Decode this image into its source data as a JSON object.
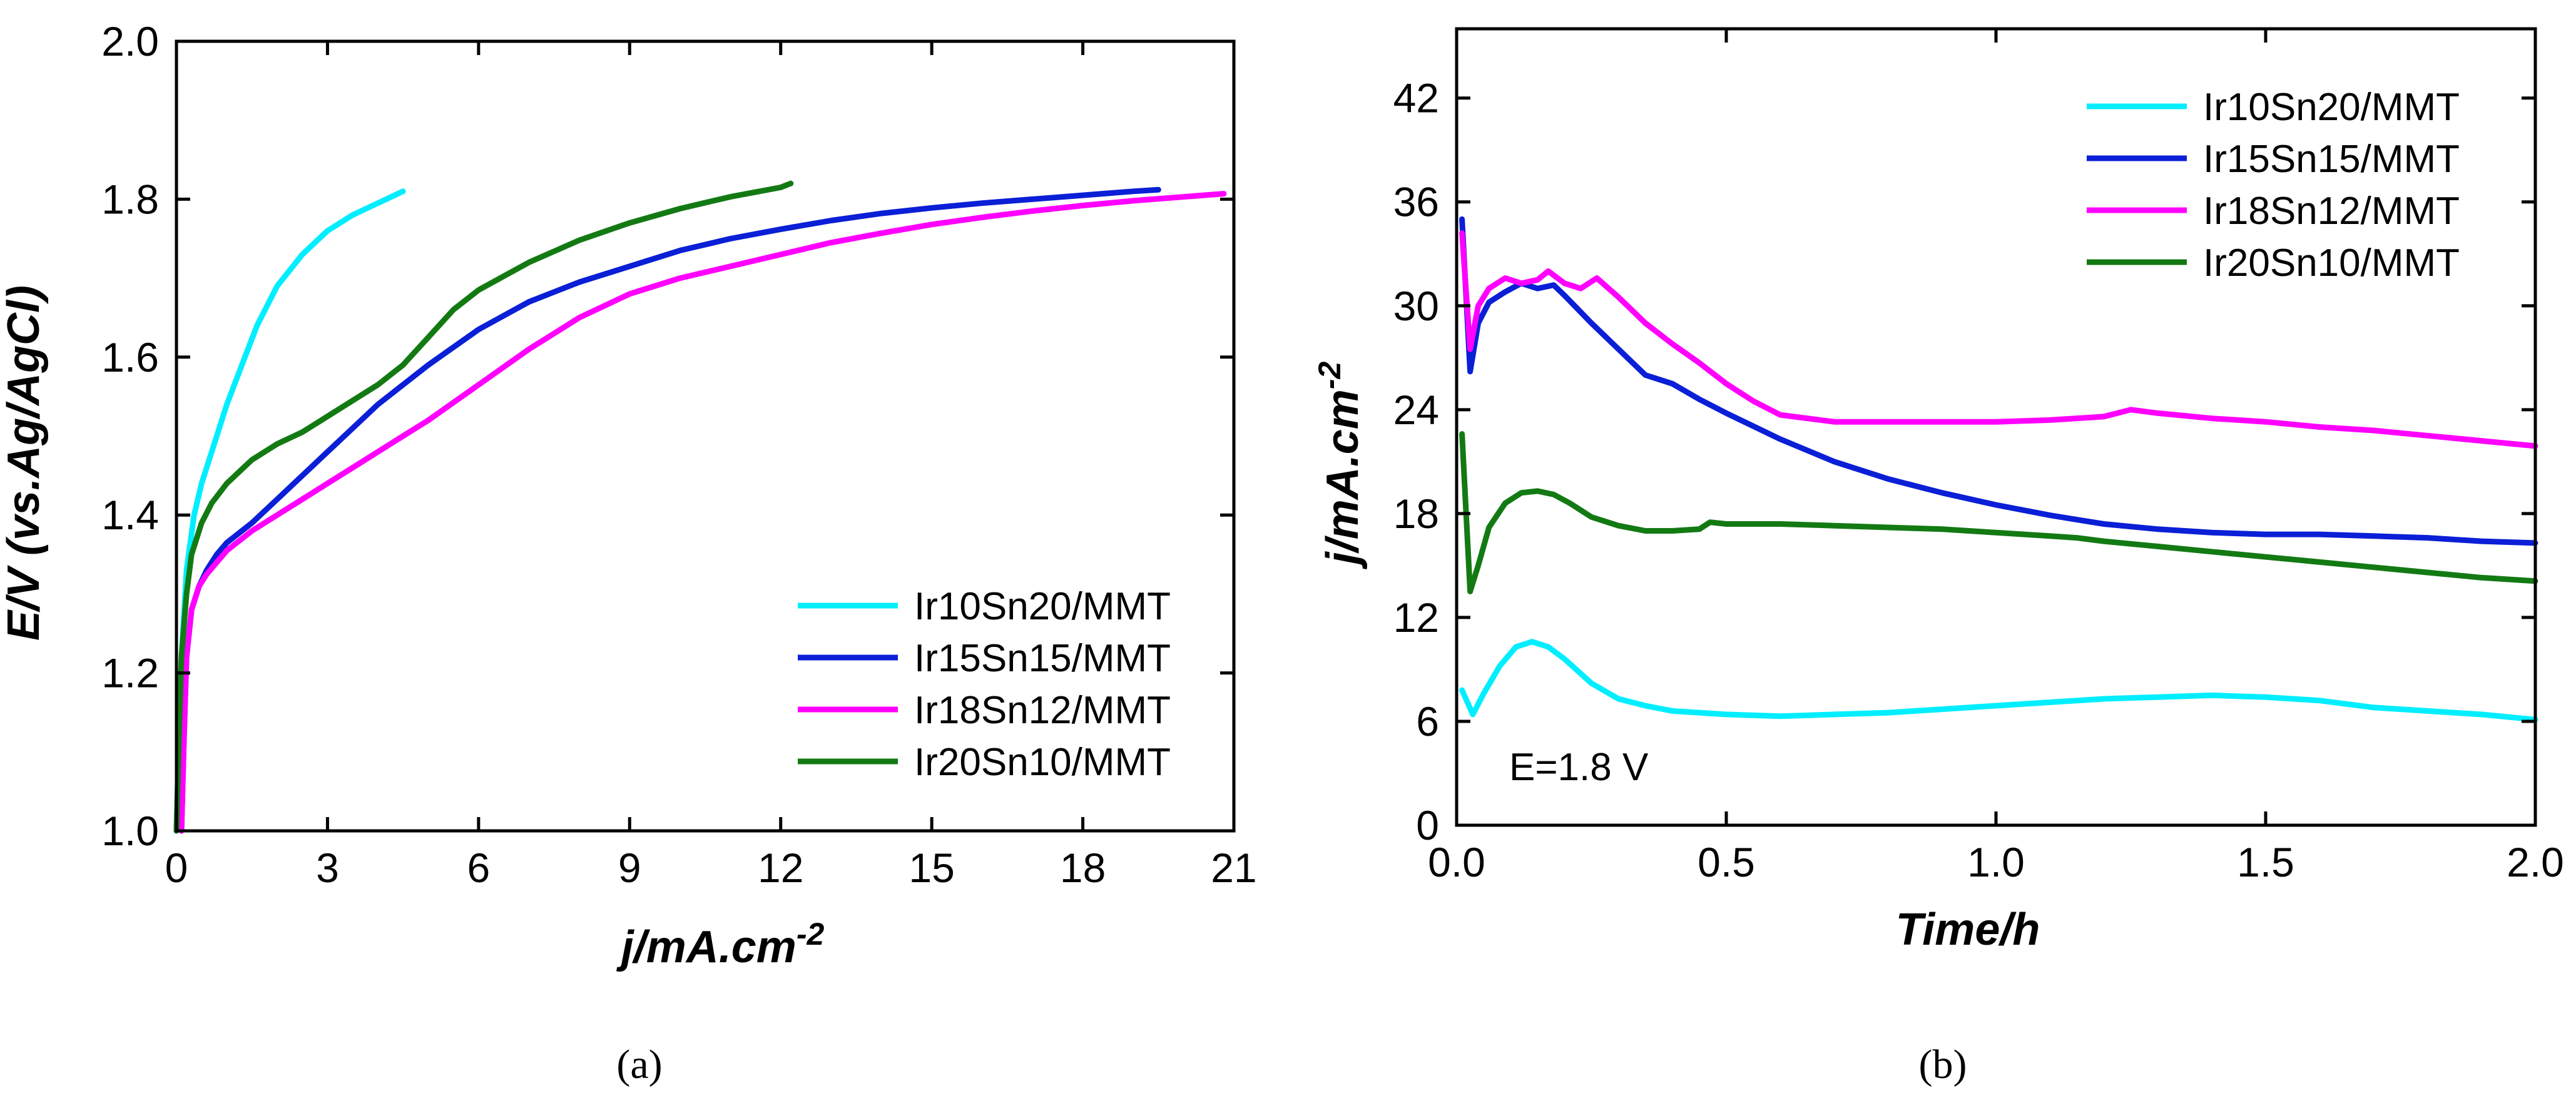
{
  "chart_data": [
    {
      "type": "line",
      "panel": "(a)",
      "xlabel": "j/mA.cm",
      "xlabel_sup": "-2",
      "ylabel": "E/V (vs.Ag/AgCl)",
      "xlim": [
        0,
        21
      ],
      "ylim": [
        1.0,
        2.0
      ],
      "xticks": [
        "0",
        "3",
        "6",
        "9",
        "12",
        "15",
        "18",
        "21"
      ],
      "yticks": [
        "1.0",
        "1.2",
        "1.4",
        "1.6",
        "1.8",
        "2.0"
      ],
      "legend_position": "lower-right",
      "series": [
        {
          "name": "Ir10Sn20/MMT",
          "color": "#00eeff",
          "x": [
            0.0,
            0.05,
            0.1,
            0.2,
            0.35,
            0.5,
            0.7,
            1.0,
            1.3,
            1.6,
            2.0,
            2.5,
            3.0,
            3.5,
            4.0,
            4.5
          ],
          "y": [
            1.0,
            1.12,
            1.22,
            1.33,
            1.4,
            1.44,
            1.48,
            1.54,
            1.59,
            1.64,
            1.69,
            1.73,
            1.76,
            1.78,
            1.795,
            1.81
          ]
        },
        {
          "name": "Ir15Sn15/MMT",
          "color": "#0a1fd6",
          "x": [
            0.1,
            0.15,
            0.2,
            0.3,
            0.45,
            0.6,
            0.8,
            1.0,
            1.5,
            2.0,
            2.5,
            3.0,
            3.5,
            4.0,
            4.5,
            5.0,
            6.0,
            7.0,
            8.0,
            9.0,
            10.0,
            11.0,
            12.0,
            13.0,
            14.0,
            15.0,
            16.0,
            17.0,
            18.0,
            19.0,
            19.5
          ],
          "y": [
            1.0,
            1.12,
            1.22,
            1.28,
            1.31,
            1.33,
            1.35,
            1.365,
            1.39,
            1.42,
            1.45,
            1.48,
            1.51,
            1.54,
            1.565,
            1.59,
            1.635,
            1.67,
            1.695,
            1.715,
            1.735,
            1.75,
            1.762,
            1.773,
            1.782,
            1.789,
            1.795,
            1.8,
            1.805,
            1.81,
            1.812
          ]
        },
        {
          "name": "Ir18Sn12/MMT",
          "color": "#ff00ff",
          "x": [
            0.1,
            0.15,
            0.2,
            0.3,
            0.45,
            0.6,
            0.8,
            1.0,
            1.5,
            2.0,
            2.5,
            3.0,
            3.5,
            4.0,
            4.5,
            5.0,
            6.0,
            7.0,
            8.0,
            9.0,
            10.0,
            11.0,
            12.0,
            13.0,
            14.0,
            15.0,
            16.0,
            17.0,
            18.0,
            19.0,
            20.0,
            20.8
          ],
          "y": [
            1.0,
            1.12,
            1.22,
            1.28,
            1.31,
            1.325,
            1.34,
            1.355,
            1.38,
            1.4,
            1.42,
            1.44,
            1.46,
            1.48,
            1.5,
            1.52,
            1.565,
            1.61,
            1.65,
            1.68,
            1.7,
            1.715,
            1.73,
            1.745,
            1.757,
            1.768,
            1.777,
            1.785,
            1.792,
            1.798,
            1.803,
            1.807
          ]
        },
        {
          "name": "Ir20Sn10/MMT",
          "color": "#137a13",
          "x": [
            0.0,
            0.05,
            0.1,
            0.2,
            0.3,
            0.5,
            0.7,
            1.0,
            1.5,
            2.0,
            2.5,
            3.0,
            3.5,
            4.0,
            4.5,
            5.0,
            5.5,
            6.0,
            7.0,
            8.0,
            9.0,
            10.0,
            11.0,
            12.0,
            12.2
          ],
          "y": [
            1.0,
            1.12,
            1.22,
            1.3,
            1.35,
            1.39,
            1.415,
            1.44,
            1.47,
            1.49,
            1.505,
            1.525,
            1.545,
            1.565,
            1.59,
            1.625,
            1.66,
            1.685,
            1.72,
            1.748,
            1.77,
            1.788,
            1.803,
            1.815,
            1.82
          ]
        }
      ],
      "caption": "(a)"
    },
    {
      "type": "line",
      "panel": "(b)",
      "xlabel": "Time/h",
      "ylabel": "j/mA.cm",
      "ylabel_sup": "-2",
      "xlim": [
        0.0,
        2.0
      ],
      "ylim": [
        0,
        46
      ],
      "xticks": [
        "0.0",
        "0.5",
        "1.0",
        "1.5",
        "2.0"
      ],
      "yticks": [
        "0",
        "6",
        "12",
        "18",
        "24",
        "30",
        "36",
        "42"
      ],
      "annotation": "E=1.8 V",
      "legend_position": "top-right",
      "series": [
        {
          "name": "Ir10Sn20/MMT",
          "color": "#00eeff",
          "x": [
            0.01,
            0.03,
            0.05,
            0.08,
            0.11,
            0.14,
            0.17,
            0.2,
            0.25,
            0.3,
            0.35,
            0.4,
            0.5,
            0.6,
            0.7,
            0.8,
            0.9,
            1.0,
            1.1,
            1.2,
            1.3,
            1.4,
            1.5,
            1.6,
            1.7,
            1.8,
            1.9,
            2.0
          ],
          "y": [
            7.8,
            6.4,
            7.6,
            9.2,
            10.3,
            10.6,
            10.3,
            9.6,
            8.2,
            7.3,
            6.9,
            6.6,
            6.4,
            6.3,
            6.4,
            6.5,
            6.7,
            6.9,
            7.1,
            7.3,
            7.4,
            7.5,
            7.4,
            7.2,
            6.8,
            6.6,
            6.4,
            6.1
          ]
        },
        {
          "name": "Ir15Sn15/MMT",
          "color": "#0a1fd6",
          "x": [
            0.01,
            0.025,
            0.04,
            0.06,
            0.09,
            0.12,
            0.15,
            0.18,
            0.2,
            0.25,
            0.3,
            0.35,
            0.4,
            0.45,
            0.5,
            0.6,
            0.7,
            0.8,
            0.9,
            1.0,
            1.1,
            1.2,
            1.3,
            1.4,
            1.5,
            1.6,
            1.7,
            1.8,
            1.9,
            2.0
          ],
          "y": [
            35.0,
            26.2,
            29.0,
            30.2,
            30.8,
            31.3,
            31.0,
            31.2,
            30.6,
            29.0,
            27.5,
            26.0,
            25.5,
            24.6,
            23.8,
            22.3,
            21.0,
            20.0,
            19.2,
            18.5,
            17.9,
            17.4,
            17.1,
            16.9,
            16.8,
            16.8,
            16.7,
            16.6,
            16.4,
            16.3
          ]
        },
        {
          "name": "Ir18Sn12/MMT",
          "color": "#ff00ff",
          "x": [
            0.01,
            0.025,
            0.04,
            0.06,
            0.09,
            0.12,
            0.15,
            0.17,
            0.2,
            0.23,
            0.26,
            0.3,
            0.35,
            0.4,
            0.45,
            0.5,
            0.55,
            0.6,
            0.7,
            0.8,
            0.9,
            1.0,
            1.1,
            1.2,
            1.25,
            1.3,
            1.4,
            1.5,
            1.6,
            1.7,
            1.8,
            1.9,
            2.0
          ],
          "y": [
            34.2,
            27.5,
            30.0,
            31.0,
            31.6,
            31.3,
            31.5,
            32.0,
            31.3,
            31.0,
            31.6,
            30.5,
            29.0,
            27.8,
            26.7,
            25.5,
            24.5,
            23.7,
            23.3,
            23.3,
            23.3,
            23.3,
            23.4,
            23.6,
            24.0,
            23.8,
            23.5,
            23.3,
            23.0,
            22.8,
            22.5,
            22.2,
            21.9
          ]
        },
        {
          "name": "Ir20Sn10/MMT",
          "color": "#137a13",
          "x": [
            0.01,
            0.025,
            0.04,
            0.06,
            0.09,
            0.12,
            0.15,
            0.18,
            0.21,
            0.25,
            0.3,
            0.35,
            0.4,
            0.45,
            0.47,
            0.5,
            0.6,
            0.7,
            0.8,
            0.9,
            1.0,
            1.1,
            1.15,
            1.2,
            1.3,
            1.4,
            1.5,
            1.6,
            1.7,
            1.8,
            1.9,
            2.0
          ],
          "y": [
            22.6,
            13.5,
            15.0,
            17.2,
            18.6,
            19.2,
            19.3,
            19.1,
            18.6,
            17.8,
            17.3,
            17.0,
            17.0,
            17.1,
            17.5,
            17.4,
            17.4,
            17.3,
            17.2,
            17.1,
            16.9,
            16.7,
            16.6,
            16.4,
            16.1,
            15.8,
            15.5,
            15.2,
            14.9,
            14.6,
            14.3,
            14.1
          ]
        }
      ],
      "caption": "(b)"
    }
  ]
}
